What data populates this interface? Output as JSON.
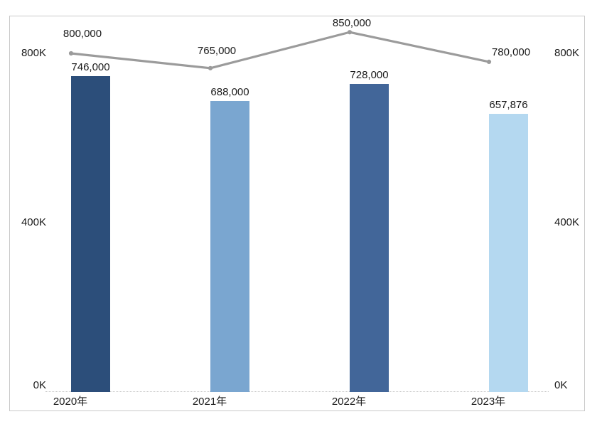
{
  "chart_data": {
    "type": "bar",
    "subtype": "combo-bar-line",
    "categories": [
      "2020年",
      "2021年",
      "2022年",
      "2023年"
    ],
    "series": [
      {
        "name": "bars",
        "type": "bar",
        "values": [
          746000,
          688000,
          728000,
          657876
        ],
        "labels": [
          "746,000",
          "688,000",
          "728,000",
          "657,876"
        ],
        "colors": [
          "#2C4E7A",
          "#7AA6D0",
          "#426699",
          "#B4D8F0"
        ]
      },
      {
        "name": "line",
        "type": "line",
        "values": [
          800000,
          765000,
          850000,
          780000
        ],
        "labels": [
          "800,000",
          "765,000",
          "850,000",
          "780,000"
        ],
        "color": "#9B9B9B"
      }
    ],
    "title": "",
    "xlabel": "",
    "ylabel": "",
    "y_axis": {
      "ticks": [
        "800K",
        "400K",
        "0K"
      ],
      "tick_values": [
        800000,
        400000,
        0
      ],
      "min": 0,
      "shown_max_tick": 800000,
      "sides": [
        "left",
        "right"
      ]
    },
    "grid": false,
    "legend": false,
    "data_labels": true,
    "frame_border_color": "#c9c9c9",
    "background_color": "#ffffff"
  }
}
